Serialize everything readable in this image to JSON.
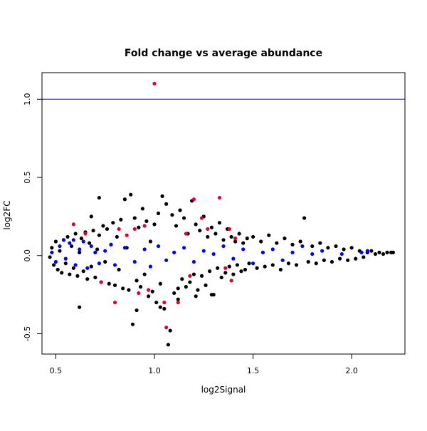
{
  "chart_data": {
    "type": "scatter",
    "title": "Fold change vs average abundance",
    "xlabel": "log2Signal",
    "ylabel": "log2FC",
    "xlim": [
      0.43,
      2.27
    ],
    "ylim": [
      -0.63,
      1.17
    ],
    "x_ticks": [
      0.5,
      1.0,
      1.5,
      2.0
    ],
    "x_tick_labels": [
      "0.5",
      "1.0",
      "1.5",
      "2.0"
    ],
    "y_ticks": [
      -0.5,
      0.0,
      0.5,
      1.0
    ],
    "y_tick_labels": [
      "-0.5",
      "0.0",
      "0.5",
      "1.0"
    ],
    "grid": false,
    "hline": {
      "y": 1.0,
      "color": "#0000ff"
    },
    "colors": {
      "black": "#000000",
      "blue": "#0000ff",
      "red": "#e0002a"
    },
    "series": [
      {
        "color_key": "black",
        "points": [
          [
            0.47,
            -0.01
          ],
          [
            0.48,
            0.05
          ],
          [
            0.49,
            -0.06
          ],
          [
            0.5,
            0.09
          ],
          [
            0.51,
            -0.09
          ],
          [
            0.52,
            0.03
          ],
          [
            0.53,
            -0.11
          ],
          [
            0.54,
            0.1
          ],
          [
            0.55,
            -0.05
          ],
          [
            0.56,
            0.12
          ],
          [
            0.57,
            -0.12
          ],
          [
            0.58,
            0.06
          ],
          [
            0.59,
            -0.08
          ],
          [
            0.6,
            0.14
          ],
          [
            0.61,
            -0.13
          ],
          [
            0.62,
            0.02
          ],
          [
            0.63,
            0.11
          ],
          [
            0.64,
            -0.1
          ],
          [
            0.65,
            0.15
          ],
          [
            0.66,
            -0.15
          ],
          [
            0.67,
            0.08
          ],
          [
            0.68,
            -0.07
          ],
          [
            0.69,
            0.16
          ],
          [
            0.7,
            -0.14
          ],
          [
            0.71,
            0.04
          ],
          [
            0.72,
            0.13
          ],
          [
            0.73,
            -0.17
          ],
          [
            0.74,
            0.19
          ],
          [
            0.75,
            -0.04
          ],
          [
            0.76,
            0.17
          ],
          [
            0.77,
            -0.18
          ],
          [
            0.78,
            0.07
          ],
          [
            0.79,
            0.21
          ],
          [
            0.8,
            -0.19
          ],
          [
            0.81,
            0.12
          ],
          [
            0.82,
            -0.09
          ],
          [
            0.83,
            0.23
          ],
          [
            0.84,
            -0.21
          ],
          [
            0.85,
            0.36
          ],
          [
            0.86,
            0.05
          ],
          [
            0.87,
            -0.22
          ],
          [
            0.88,
            0.39
          ],
          [
            0.89,
            -0.44
          ],
          [
            0.9,
            0.24
          ],
          [
            0.91,
            -0.16
          ],
          [
            0.92,
            0.18
          ],
          [
            0.93,
            -0.2
          ],
          [
            0.94,
            0.3
          ],
          [
            0.95,
            -0.12
          ],
          [
            0.96,
            0.22
          ],
          [
            0.97,
            -0.26
          ],
          [
            0.98,
            0.09
          ],
          [
            0.99,
            -0.23
          ],
          [
            1.0,
            0.2
          ],
          [
            1.01,
            -0.3
          ],
          [
            1.02,
            0.27
          ],
          [
            1.03,
            -0.18
          ],
          [
            1.04,
            0.38
          ],
          [
            1.05,
            -0.34
          ],
          [
            1.06,
            0.33
          ],
          [
            1.07,
            -0.57
          ],
          [
            1.08,
            -0.48
          ],
          [
            1.09,
            0.26
          ],
          [
            1.1,
            -0.24
          ],
          [
            1.11,
            0.19
          ],
          [
            1.12,
            -0.21
          ],
          [
            1.13,
            0.29
          ],
          [
            1.14,
            -0.15
          ],
          [
            1.15,
            0.24
          ],
          [
            1.16,
            -0.2
          ],
          [
            1.17,
            0.14
          ],
          [
            1.18,
            -0.17
          ],
          [
            1.19,
            0.35
          ],
          [
            1.2,
            -0.12
          ],
          [
            1.21,
            0.2
          ],
          [
            1.22,
            -0.22
          ],
          [
            1.23,
            0.16
          ],
          [
            1.24,
            -0.13
          ],
          [
            1.25,
            0.25
          ],
          [
            1.26,
            -0.19
          ],
          [
            1.27,
            0.12
          ],
          [
            1.28,
            -0.1
          ],
          [
            1.29,
            0.18
          ],
          [
            1.3,
            -0.25
          ],
          [
            1.31,
            0.14
          ],
          [
            1.32,
            -0.08
          ],
          [
            1.33,
            0.21
          ],
          [
            1.34,
            -0.14
          ],
          [
            1.35,
            0.1
          ],
          [
            1.36,
            -0.11
          ],
          [
            1.37,
            0.17
          ],
          [
            1.38,
            -0.07
          ],
          [
            1.39,
            0.12
          ],
          [
            1.4,
            -0.12
          ],
          [
            1.41,
            0.09
          ],
          [
            1.42,
            -0.06
          ],
          [
            1.43,
            0.14
          ],
          [
            1.44,
            -0.1
          ],
          [
            1.45,
            0.08
          ],
          [
            1.46,
            -0.09
          ],
          [
            1.47,
            0.11
          ],
          [
            1.48,
            -0.05
          ],
          [
            1.5,
            0.12
          ],
          [
            1.52,
            -0.08
          ],
          [
            1.54,
            0.09
          ],
          [
            1.56,
            -0.07
          ],
          [
            1.58,
            0.13
          ],
          [
            1.6,
            -0.06
          ],
          [
            1.62,
            0.08
          ],
          [
            1.64,
            -0.09
          ],
          [
            1.66,
            0.11
          ],
          [
            1.68,
            -0.05
          ],
          [
            1.7,
            0.07
          ],
          [
            1.72,
            -0.06
          ],
          [
            1.74,
            0.09
          ],
          [
            1.76,
            0.24
          ],
          [
            1.78,
            -0.04
          ],
          [
            1.8,
            0.06
          ],
          [
            1.82,
            -0.05
          ],
          [
            1.84,
            0.08
          ],
          [
            1.86,
            -0.03
          ],
          [
            1.88,
            0.05
          ],
          [
            1.9,
            -0.04
          ],
          [
            1.92,
            0.06
          ],
          [
            1.94,
            -0.02
          ],
          [
            1.96,
            0.04
          ],
          [
            1.98,
            -0.03
          ],
          [
            2.0,
            0.05
          ],
          [
            2.02,
            -0.02
          ],
          [
            2.04,
            0.03
          ],
          [
            2.06,
            -0.01
          ],
          [
            2.08,
            0.02
          ],
          [
            2.1,
            0.03
          ],
          [
            2.12,
            0.01
          ],
          [
            2.14,
            0.02
          ],
          [
            2.16,
            0.01
          ],
          [
            2.18,
            0.02
          ],
          [
            2.2,
            0.02
          ],
          [
            2.21,
            0.02
          ],
          [
            0.72,
            0.37
          ],
          [
            0.68,
            0.25
          ],
          [
            1.12,
            -0.28
          ],
          [
            1.03,
            -0.33
          ],
          [
            0.62,
            -0.33
          ],
          [
            1.21,
            -0.26
          ],
          [
            1.29,
            -0.25
          ],
          [
            0.91,
            -0.35
          ]
        ]
      },
      {
        "color_key": "blue",
        "points": [
          [
            0.48,
            0.02
          ],
          [
            0.5,
            -0.04
          ],
          [
            0.52,
            0.06
          ],
          [
            0.54,
            0.1
          ],
          [
            0.55,
            -0.02
          ],
          [
            0.57,
            0.08
          ],
          [
            0.59,
            0.1
          ],
          [
            0.6,
            -0.06
          ],
          [
            0.62,
            0.04
          ],
          [
            0.64,
            0.09
          ],
          [
            0.66,
            -0.08
          ],
          [
            0.68,
            0.06
          ],
          [
            0.7,
            0.02
          ],
          [
            0.72,
            -0.05
          ],
          [
            0.75,
            0.03
          ],
          [
            0.78,
            0.07
          ],
          [
            0.8,
            -0.06
          ],
          [
            0.85,
            0.05
          ],
          [
            0.9,
            -0.04
          ],
          [
            0.95,
            0.04
          ],
          [
            0.98,
            -0.07
          ],
          [
            1.02,
            0.06
          ],
          [
            1.06,
            -0.03
          ],
          [
            1.1,
            0.02
          ],
          [
            1.15,
            0.05
          ],
          [
            1.2,
            -0.04
          ],
          [
            1.25,
            0.03
          ],
          [
            1.3,
            0.01
          ],
          [
            1.35,
            0.06
          ],
          [
            1.4,
            -0.02
          ],
          [
            1.45,
            0.04
          ],
          [
            1.5,
            -0.05
          ],
          [
            1.55,
            0.02
          ],
          [
            1.6,
            0.04
          ],
          [
            1.65,
            -0.03
          ],
          [
            1.7,
            0.02
          ],
          [
            1.75,
            0.06
          ],
          [
            1.8,
            0.01
          ],
          [
            1.85,
            0.03
          ],
          [
            1.95,
            0.01
          ],
          [
            2.05,
            0.02
          ],
          [
            2.08,
            0.03
          ]
        ]
      },
      {
        "color_key": "red",
        "points": [
          [
            1.0,
            1.1
          ],
          [
            0.59,
            0.2
          ],
          [
            0.65,
            0.14
          ],
          [
            0.73,
            -0.17
          ],
          [
            0.8,
            -0.3
          ],
          [
            0.82,
            0.17
          ],
          [
            0.86,
            0.13
          ],
          [
            0.9,
            0.17
          ],
          [
            0.92,
            -0.24
          ],
          [
            0.95,
            0.19
          ],
          [
            0.97,
            -0.22
          ],
          [
            1.05,
            -0.3
          ],
          [
            1.06,
            -0.46
          ],
          [
            1.12,
            -0.3
          ],
          [
            1.16,
            0.14
          ],
          [
            1.2,
            0.36
          ],
          [
            1.24,
            0.24
          ],
          [
            1.27,
            0.17
          ],
          [
            1.33,
            0.37
          ],
          [
            1.36,
            -0.08
          ],
          [
            1.38,
            0.17
          ],
          [
            1.39,
            -0.16
          ],
          [
            1.41,
            0.11
          ],
          [
            1.18,
            -0.13
          ]
        ]
      }
    ]
  }
}
